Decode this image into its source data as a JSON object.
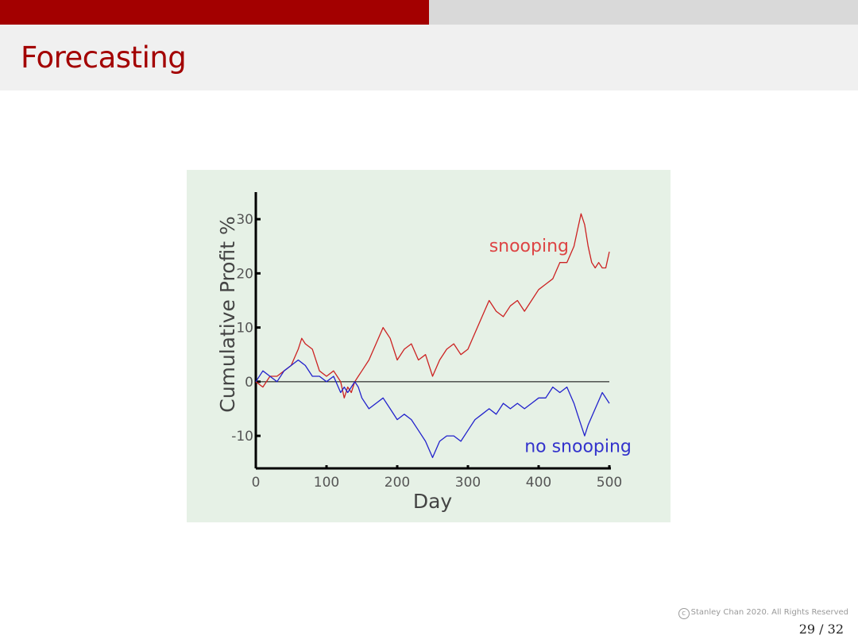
{
  "slide": {
    "title": "Forecasting",
    "copyright": "Stanley Chan 2020. All Rights Reserved",
    "copyright_symbol": "c",
    "page_current": "29",
    "page_total": "32",
    "page_sep": "/"
  },
  "colors": {
    "accent": "#a30000",
    "header_bg": "#f0f0f0",
    "topbar_right": "#d9d9d9",
    "chart_bg": "#e6f1e6",
    "snooping": "#cc2222",
    "no_snooping": "#2222cc"
  },
  "chart_data": {
    "type": "line",
    "title": "",
    "xlabel": "Day",
    "ylabel": "Cumulative Profit %",
    "xlim": [
      0,
      500
    ],
    "ylim": [
      -16,
      35
    ],
    "xticks": [
      0,
      100,
      200,
      300,
      400,
      500
    ],
    "yticks": [
      -10,
      0,
      10,
      20,
      30
    ],
    "ytick_labels": [
      "-10",
      "0",
      "10",
      "20",
      "30"
    ],
    "zero_line": true,
    "grid": false,
    "series": [
      {
        "name": "snooping",
        "color": "#cc2222",
        "label_color": "#dd4444",
        "x": [
          0,
          10,
          20,
          30,
          40,
          50,
          60,
          65,
          70,
          80,
          90,
          100,
          110,
          115,
          120,
          125,
          130,
          135,
          140,
          145,
          150,
          160,
          170,
          180,
          190,
          200,
          210,
          220,
          230,
          240,
          250,
          260,
          270,
          280,
          290,
          300,
          310,
          320,
          330,
          340,
          350,
          360,
          370,
          380,
          390,
          400,
          410,
          420,
          430,
          440,
          450,
          455,
          460,
          465,
          470,
          475,
          480,
          485,
          490,
          495,
          500
        ],
        "y": [
          0,
          -1,
          1,
          1,
          2,
          3,
          6,
          8,
          7,
          6,
          2,
          1,
          2,
          1,
          0,
          -3,
          -1,
          -2,
          0,
          1,
          2,
          4,
          7,
          10,
          8,
          4,
          6,
          7,
          4,
          5,
          1,
          4,
          6,
          7,
          5,
          6,
          9,
          12,
          15,
          13,
          12,
          14,
          15,
          13,
          15,
          17,
          18,
          19,
          22,
          22,
          25,
          28,
          31,
          29,
          25,
          22,
          21,
          22,
          21,
          21,
          24
        ]
      },
      {
        "name": "no snooping",
        "color": "#2222cc",
        "label_color": "#3333cc",
        "x": [
          0,
          10,
          20,
          30,
          40,
          50,
          60,
          70,
          80,
          90,
          100,
          110,
          120,
          125,
          130,
          135,
          140,
          145,
          150,
          160,
          170,
          180,
          190,
          200,
          210,
          220,
          230,
          240,
          250,
          260,
          270,
          280,
          290,
          300,
          310,
          320,
          330,
          340,
          350,
          360,
          370,
          380,
          390,
          400,
          410,
          420,
          430,
          440,
          450,
          455,
          460,
          465,
          470,
          480,
          490,
          500
        ],
        "y": [
          0,
          2,
          1,
          0,
          2,
          3,
          4,
          3,
          1,
          1,
          0,
          1,
          -2,
          -1,
          -2,
          -1,
          0,
          -1,
          -3,
          -5,
          -4,
          -3,
          -5,
          -7,
          -6,
          -7,
          -9,
          -11,
          -14,
          -11,
          -10,
          -10,
          -11,
          -9,
          -7,
          -6,
          -5,
          -6,
          -4,
          -5,
          -4,
          -5,
          -4,
          -3,
          -3,
          -1,
          -2,
          -1,
          -4,
          -6,
          -8,
          -10,
          -8,
          -5,
          -2,
          -4
        ]
      }
    ]
  }
}
